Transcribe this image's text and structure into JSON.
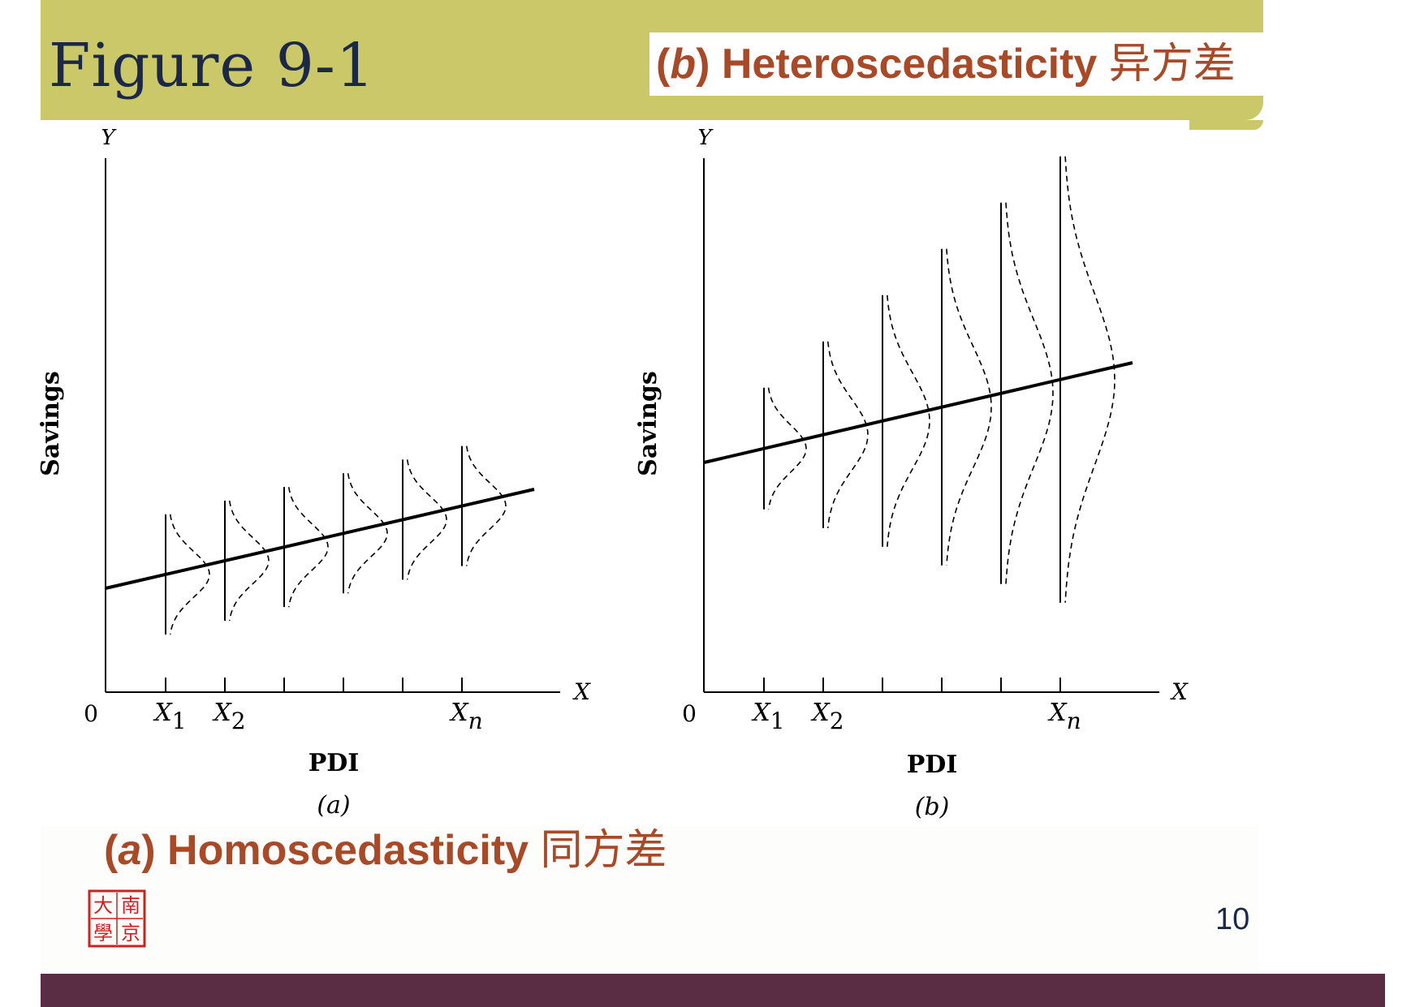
{
  "header": {
    "title": "Figure 9-1",
    "caption_b": {
      "letter": "b",
      "text": "Heteroscedasticity",
      "cjk": "异方差"
    }
  },
  "caption_a": {
    "letter": "a",
    "text": "Homoscedasticity",
    "cjk": "同方差"
  },
  "page_number": "10",
  "seal": {
    "characters": "南京大學"
  },
  "panels": [
    {
      "id": "a",
      "y_axis_letter": "Y",
      "x_axis_letter": "X",
      "origin_label": "0",
      "ylabel": "Savings",
      "xlabel": "PDI",
      "panel_label": "(a)",
      "tick_labels": [
        {
          "base": "X",
          "sub": "1"
        },
        {
          "base": "X",
          "sub": "2"
        },
        {
          "base": "",
          "sub": ""
        },
        {
          "base": "",
          "sub": ""
        },
        {
          "base": "",
          "sub": ""
        },
        {
          "base": "X",
          "sub": "n"
        }
      ],
      "spread": "constant"
    },
    {
      "id": "b",
      "y_axis_letter": "Y",
      "x_axis_letter": "X",
      "origin_label": "0",
      "ylabel": "Savings",
      "xlabel": "PDI",
      "panel_label": "(b)",
      "tick_labels": [
        {
          "base": "X",
          "sub": "1"
        },
        {
          "base": "X",
          "sub": "2"
        },
        {
          "base": "",
          "sub": ""
        },
        {
          "base": "",
          "sub": ""
        },
        {
          "base": "",
          "sub": ""
        },
        {
          "base": "X",
          "sub": "n"
        }
      ],
      "spread": "increasing"
    }
  ]
}
